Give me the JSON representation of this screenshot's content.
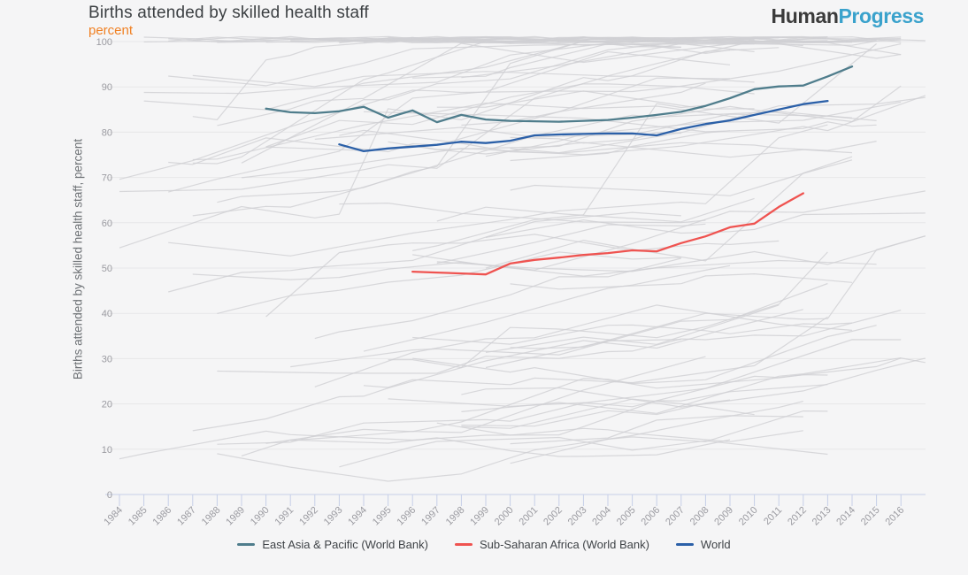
{
  "header": {
    "title": "Births attended by skilled health staff",
    "unit_label": "percent",
    "logo": {
      "part1": "Human",
      "part2": "Progress"
    }
  },
  "chart_data": {
    "type": "line",
    "title": "Births attended by skilled health staff",
    "subtitle": "percent",
    "ylabel": "Births attended by skilled health staff, percent",
    "xlabel": "",
    "xlim": [
      1984,
      2017
    ],
    "ylim": [
      0,
      100
    ],
    "x_ticks": [
      1984,
      1985,
      1986,
      1987,
      1988,
      1989,
      1990,
      1991,
      1992,
      1993,
      1994,
      1995,
      1996,
      1997,
      1998,
      1999,
      2000,
      2001,
      2002,
      2003,
      2004,
      2005,
      2006,
      2007,
      2008,
      2009,
      2010,
      2011,
      2012,
      2013,
      2014,
      2015,
      2016
    ],
    "y_ticks": [
      0,
      10,
      20,
      30,
      40,
      50,
      60,
      70,
      80,
      90,
      100
    ],
    "grid": "horizontal",
    "legend_position": "bottom-center",
    "series": [
      {
        "name": "East Asia & Pacific (World Bank)",
        "color": "#4f7d8c",
        "years": [
          1990,
          1991,
          1992,
          1993,
          1994,
          1995,
          1996,
          1997,
          1998,
          1999,
          2000,
          2001,
          2002,
          2003,
          2004,
          2005,
          2006,
          2007,
          2008,
          2009,
          2010,
          2011,
          2012,
          2013,
          2014
        ],
        "values": [
          85.2,
          84.4,
          84.2,
          84.6,
          85.6,
          83.2,
          84.8,
          82.2,
          83.8,
          82.8,
          82.5,
          82.4,
          82.3,
          82.5,
          82.7,
          83.2,
          83.8,
          84.5,
          85.8,
          87.5,
          89.5,
          90.1,
          90.3,
          92.3,
          94.5
        ]
      },
      {
        "name": "Sub-Saharan Africa (World Bank)",
        "color": "#ef5350",
        "years": [
          1996,
          1997,
          1998,
          1999,
          2000,
          2001,
          2002,
          2003,
          2004,
          2005,
          2006,
          2007,
          2008,
          2009,
          2010,
          2011,
          2012
        ],
        "values": [
          49.2,
          49.0,
          48.8,
          48.6,
          51.0,
          51.8,
          52.3,
          52.9,
          53.3,
          53.9,
          53.7,
          55.5,
          57.0,
          59.0,
          59.8,
          63.5,
          66.5
        ]
      },
      {
        "name": "World",
        "color": "#2b60a8",
        "years": [
          1993,
          1994,
          1995,
          1996,
          1997,
          1998,
          1999,
          2000,
          2001,
          2002,
          2003,
          2004,
          2005,
          2006,
          2007,
          2008,
          2009,
          2010,
          2011,
          2012,
          2013
        ],
        "values": [
          77.3,
          75.8,
          76.4,
          76.8,
          77.2,
          77.9,
          77.6,
          78.1,
          79.3,
          79.5,
          79.6,
          79.7,
          79.7,
          79.3,
          80.7,
          81.8,
          82.6,
          83.8,
          85.0,
          86.2,
          86.9
        ]
      }
    ],
    "background_series": {
      "description": "Unlabeled light-gray per-country trend lines shown for context; many saturate at 100 forming a dense band at the top",
      "approx_count": 90,
      "color": "#d0d0d3"
    },
    "colors": {
      "background": "#f5f5f6",
      "gridline": "#e7e7e9",
      "axis": "#c6cfe8",
      "tick_label": "#9b9ba1",
      "title": "#3b3f42",
      "subtitle_accent": "#f08124",
      "logo_dark": "#3b3b3b",
      "logo_blue": "#3aa2cc"
    }
  }
}
